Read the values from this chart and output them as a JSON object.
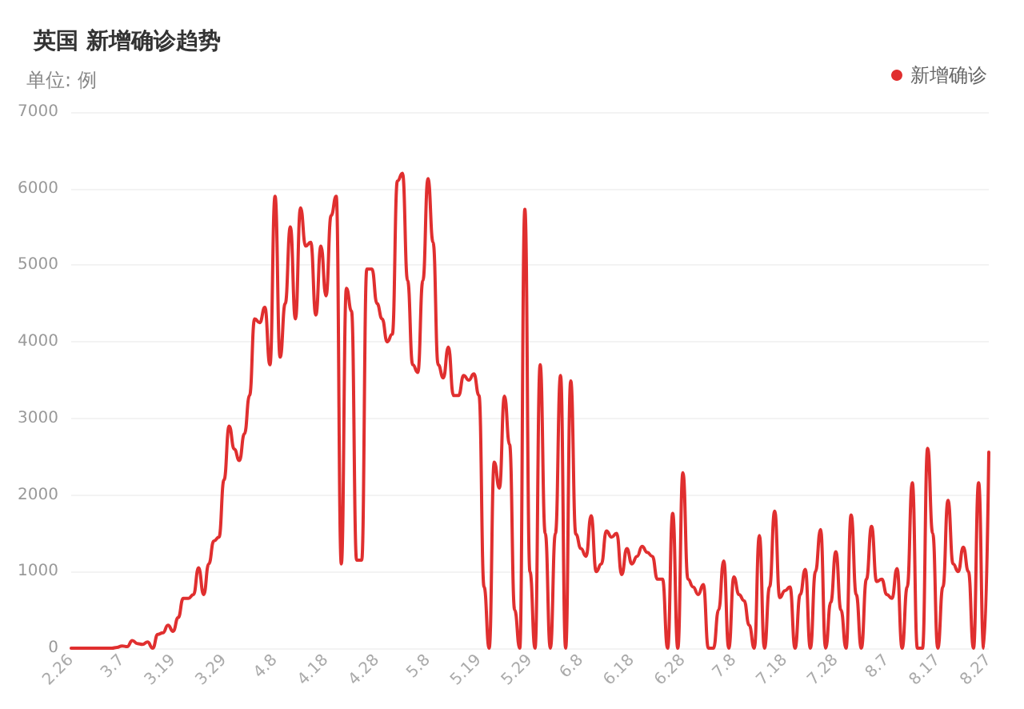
{
  "chart_data": {
    "type": "line",
    "title": "英国 新增确诊趋势",
    "ylabel": "单位: 例",
    "categories": [
      "2.26",
      null,
      null,
      null,
      null,
      null,
      null,
      null,
      null,
      null,
      "3.7",
      null,
      null,
      null,
      null,
      null,
      null,
      null,
      null,
      null,
      "3.19",
      null,
      null,
      null,
      null,
      null,
      null,
      null,
      null,
      null,
      "3.29",
      null,
      null,
      null,
      null,
      null,
      null,
      null,
      null,
      null,
      "4.8",
      null,
      null,
      null,
      null,
      null,
      null,
      null,
      null,
      null,
      "4.18",
      null,
      null,
      null,
      null,
      null,
      null,
      null,
      null,
      null,
      "4.28",
      null,
      null,
      null,
      null,
      null,
      null,
      null,
      null,
      null,
      "5.8",
      null,
      null,
      null,
      null,
      null,
      null,
      null,
      null,
      null,
      "5.19",
      null,
      null,
      null,
      null,
      null,
      null,
      null,
      null,
      null,
      "5.29",
      null,
      null,
      null,
      null,
      null,
      null,
      null,
      null,
      null,
      "6.8",
      null,
      null,
      null,
      null,
      null,
      null,
      null,
      null,
      null,
      "6.18",
      null,
      null,
      null,
      null,
      null,
      null,
      null,
      null,
      null,
      "6.28",
      null,
      null,
      null,
      null,
      null,
      null,
      null,
      null,
      null,
      "7.8",
      null,
      null,
      null,
      null,
      null,
      null,
      null,
      null,
      null,
      "7.18",
      null,
      null,
      null,
      null,
      null,
      null,
      null,
      null,
      null,
      "7.28",
      null,
      null,
      null,
      null,
      null,
      null,
      null,
      null,
      null,
      "8.7",
      null,
      null,
      null,
      null,
      null,
      null,
      null,
      null,
      null,
      "8.17",
      null,
      null,
      null,
      null,
      null,
      null,
      null,
      null,
      null,
      "8.27"
    ],
    "series": [
      {
        "name": "新增确诊",
        "color": "#e02f2f",
        "values": [
          0,
          0,
          0,
          0,
          0,
          0,
          0,
          0,
          0,
          10,
          30,
          20,
          100,
          60,
          50,
          80,
          0,
          180,
          200,
          300,
          220,
          400,
          650,
          650,
          700,
          1050,
          700,
          1100,
          1400,
          1450,
          2200,
          2900,
          2600,
          2450,
          2800,
          3300,
          4300,
          4250,
          4450,
          3700,
          5900,
          3800,
          4500,
          5500,
          4300,
          5750,
          5250,
          5300,
          4350,
          5250,
          4600,
          5650,
          5900,
          1100,
          4700,
          4400,
          1150,
          1150,
          4950,
          4950,
          4500,
          4300,
          4000,
          4100,
          6100,
          6200,
          4800,
          3700,
          3600,
          4800,
          6130,
          5300,
          3700,
          3530,
          3930,
          3300,
          3300,
          3560,
          3500,
          3580,
          3300,
          800,
          0,
          2430,
          2090,
          3290,
          2660,
          500,
          0,
          5730,
          1000,
          0,
          3700,
          1500,
          0,
          1500,
          3560,
          0,
          3490,
          1490,
          1300,
          1200,
          1730,
          1000,
          1100,
          1530,
          1450,
          1500,
          960,
          1300,
          1100,
          1200,
          1330,
          1250,
          1200,
          900,
          900,
          0,
          1760,
          0,
          2290,
          900,
          800,
          700,
          830,
          0,
          0,
          500,
          1140,
          0,
          930,
          700,
          620,
          300,
          0,
          1470,
          0,
          800,
          1790,
          660,
          750,
          800,
          0,
          700,
          1030,
          0,
          1000,
          1550,
          0,
          600,
          1260,
          500,
          0,
          1740,
          700,
          0,
          900,
          1590,
          870,
          900,
          700,
          650,
          1040,
          0,
          800,
          2160,
          0,
          0,
          2610,
          1500,
          0,
          800,
          1930,
          1100,
          1000,
          1320,
          1000,
          0,
          2160,
          0,
          2560
        ]
      }
    ],
    "ylim": [
      0,
      7000
    ],
    "yticks": [
      0,
      1000,
      2000,
      3000,
      4000,
      5000,
      6000,
      7000
    ],
    "grid": "y",
    "legend": "top right",
    "marker": "none",
    "line_style": "solid"
  }
}
